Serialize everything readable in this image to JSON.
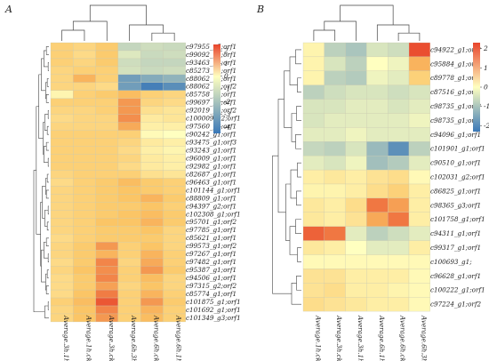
{
  "chart_data": [
    {
      "type": "heatmap",
      "panel": "A",
      "columns": [
        "Average.3h.1h",
        "Average.1h.ck",
        "Average.3h.ck",
        "Average.6h.3h",
        "Average.6h.ck",
        "Average.6h.1h"
      ],
      "rows": [
        "c97955_g5;orf1",
        "c99092_g1;orf1",
        "c93463_g2;orf1",
        "c85273_g1;orf1",
        "c88062_g1;orf1",
        "c88062_g1;orf2",
        "c85758_g1;orf1",
        "c99697_g1;orf1",
        "c92019_g1;orf2",
        "c100009_g2;orf1",
        "c97560_g2;orf1",
        "c90242_g1;orf1",
        "c93475_g1;orf3",
        "c93243_g1;orf1",
        "c96009_g1;orf1",
        "c92982_g1;orf1",
        "c82687_g1;orf1",
        "c96463_g1;orf1",
        "c101144_g1;orf1",
        "c88809_g1;orf1",
        "c94397_g2;orf1",
        "c102308_g1;orf1",
        "c95701_g1;orf2",
        "c97785_g1;orf1",
        "c85621_g1;orf1",
        "c99573_g1;orf2",
        "c97267_g1;orf1",
        "c97482_g1;orf1",
        "c95387_g1;orf1",
        "c94506_g1;orf1",
        "c97315_g2;orf2",
        "c85774_g1;orf1",
        "c101875_g1;orf1",
        "c101692_g1;orf1",
        "c101349_g3;orf1"
      ],
      "values": [
        [
          0.9,
          0.8,
          1.0,
          -1.0,
          -0.8,
          -0.9
        ],
        [
          0.9,
          0.7,
          1.0,
          -0.5,
          -0.9,
          -0.8
        ],
        [
          0.9,
          0.8,
          1.0,
          -0.8,
          -1.0,
          -1.0
        ],
        [
          0.8,
          0.9,
          0.9,
          -0.7,
          -0.9,
          -0.8
        ],
        [
          0.8,
          1.3,
          0.9,
          -3.0,
          -2.5,
          -2.2
        ],
        [
          0.8,
          0.8,
          0.7,
          -3.0,
          -4.2,
          -3.6
        ],
        [
          0.2,
          0.9,
          1.0,
          1.2,
          0.9,
          0.8
        ],
        [
          0.9,
          0.9,
          0.9,
          1.6,
          0.8,
          0.7
        ],
        [
          0.8,
          0.8,
          0.9,
          1.6,
          0.6,
          0.5
        ],
        [
          0.7,
          0.8,
          0.8,
          1.7,
          0.4,
          0.5
        ],
        [
          0.8,
          0.8,
          0.8,
          1.4,
          0.3,
          0.3
        ],
        [
          0.9,
          0.9,
          0.9,
          0.9,
          0.1,
          0.0
        ],
        [
          0.9,
          0.9,
          0.9,
          0.8,
          0.4,
          0.3
        ],
        [
          0.9,
          0.9,
          0.9,
          0.7,
          0.3,
          0.2
        ],
        [
          0.9,
          0.9,
          0.9,
          0.8,
          0.4,
          0.3
        ],
        [
          0.9,
          0.9,
          0.9,
          0.7,
          0.4,
          0.3
        ],
        [
          0.8,
          0.9,
          0.9,
          0.9,
          0.6,
          0.5
        ],
        [
          0.7,
          0.9,
          1.0,
          1.2,
          1.0,
          0.9
        ],
        [
          0.8,
          0.9,
          1.0,
          1.1,
          1.0,
          0.9
        ],
        [
          0.8,
          0.9,
          1.0,
          1.1,
          1.3,
          1.0
        ],
        [
          0.8,
          0.9,
          1.0,
          1.0,
          1.1,
          0.9
        ],
        [
          0.8,
          0.9,
          1.0,
          1.1,
          1.2,
          1.0
        ],
        [
          0.8,
          0.9,
          1.1,
          1.1,
          1.3,
          1.0
        ],
        [
          0.8,
          0.9,
          1.0,
          1.0,
          1.1,
          0.8
        ],
        [
          0.7,
          0.9,
          1.0,
          1.0,
          1.0,
          0.8
        ],
        [
          0.8,
          1.0,
          1.6,
          0.9,
          1.1,
          0.8
        ],
        [
          0.8,
          1.0,
          1.3,
          0.9,
          1.3,
          0.9
        ],
        [
          0.7,
          1.0,
          1.8,
          0.8,
          1.4,
          0.9
        ],
        [
          0.8,
          1.1,
          1.7,
          0.9,
          1.6,
          1.0
        ],
        [
          0.7,
          1.0,
          1.8,
          0.9,
          1.2,
          0.8
        ],
        [
          0.7,
          1.0,
          1.5,
          0.8,
          1.1,
          0.8
        ],
        [
          0.7,
          1.1,
          1.9,
          0.9,
          1.3,
          0.9
        ],
        [
          0.9,
          1.2,
          2.3,
          0.9,
          1.6,
          1.0
        ],
        [
          0.8,
          1.1,
          1.8,
          0.9,
          1.3,
          0.9
        ],
        [
          0.8,
          1.1,
          1.6,
          0.9,
          1.2,
          0.9
        ]
      ],
      "legend": {
        "ticks": [
          2,
          1,
          0,
          -1,
          -2,
          -3,
          -4
        ],
        "min": -4.5,
        "max": 2.5
      }
    },
    {
      "type": "heatmap",
      "panel": "B",
      "columns": [
        "Average.1h.ck",
        "Average.3h.ck",
        "Average.3h.1h",
        "Average.6h.1h",
        "Average.6h.ck",
        "Average.6h.3h"
      ],
      "rows": [
        "c94922_g1;orf2",
        "c95884_g1;orf1",
        "c89778_g1;orf1",
        "c87516_g1;orf1",
        "c98735_g1;orf2",
        "c98735_g1;orf1",
        "c94096_g1;orf1",
        "c101901_g1;orf1",
        "c90510_g1;orf1",
        "c102031_g2;orf1",
        "c86825_g1;orf1",
        "c98365_g3;orf1",
        "c101758_g1;orf1",
        "c94311_g1;orf1",
        "c99317_g1;orf1",
        "c100693_g1;",
        "c96628_g1;orf1",
        "c100222_g1;orf1",
        "c97224_g1;orf2"
      ],
      "values": [
        [
          0.2,
          -0.6,
          -0.8,
          -0.3,
          -0.4,
          2.2
        ],
        [
          0.2,
          -0.3,
          -0.6,
          0.0,
          -0.1,
          1.2
        ],
        [
          0.2,
          -0.6,
          -0.7,
          -0.1,
          -0.2,
          0.8
        ],
        [
          -0.6,
          -0.4,
          -0.3,
          -0.3,
          -0.4,
          -0.3
        ],
        [
          -0.3,
          -0.3,
          -0.2,
          -0.2,
          -0.3,
          -0.2
        ],
        [
          -0.3,
          -0.2,
          -0.2,
          -0.2,
          -0.2,
          -0.1
        ],
        [
          -0.2,
          -0.2,
          -0.1,
          -0.2,
          -0.2,
          -0.2
        ],
        [
          -0.5,
          -0.6,
          -0.3,
          -1.0,
          -1.8,
          -0.6
        ],
        [
          -0.2,
          -0.3,
          -0.1,
          -0.9,
          -0.7,
          -0.2
        ],
        [
          0.3,
          0.4,
          0.3,
          0.5,
          0.6,
          0.1
        ],
        [
          0.2,
          0.2,
          0.3,
          0.6,
          0.8,
          0.3
        ],
        [
          0.4,
          0.3,
          0.6,
          1.8,
          1.4,
          0.3
        ],
        [
          0.4,
          0.3,
          0.5,
          1.3,
          1.8,
          0.3
        ],
        [
          2.0,
          1.8,
          -0.2,
          -0.6,
          -0.4,
          -0.2
        ],
        [
          0.4,
          0.3,
          0.0,
          -0.2,
          -0.2,
          0.3
        ],
        [
          0.1,
          0.1,
          0.1,
          0.1,
          0.1,
          0.1
        ],
        [
          0.5,
          0.5,
          0.3,
          0.3,
          0.3,
          0.1
        ],
        [
          0.5,
          0.6,
          0.3,
          0.3,
          0.2,
          0.1
        ],
        [
          0.6,
          0.5,
          0.4,
          0.3,
          0.3,
          0.1
        ]
      ],
      "legend": {
        "ticks": [
          2,
          1,
          0,
          -1,
          -2
        ],
        "min": -2.3,
        "max": 2.3
      }
    }
  ]
}
